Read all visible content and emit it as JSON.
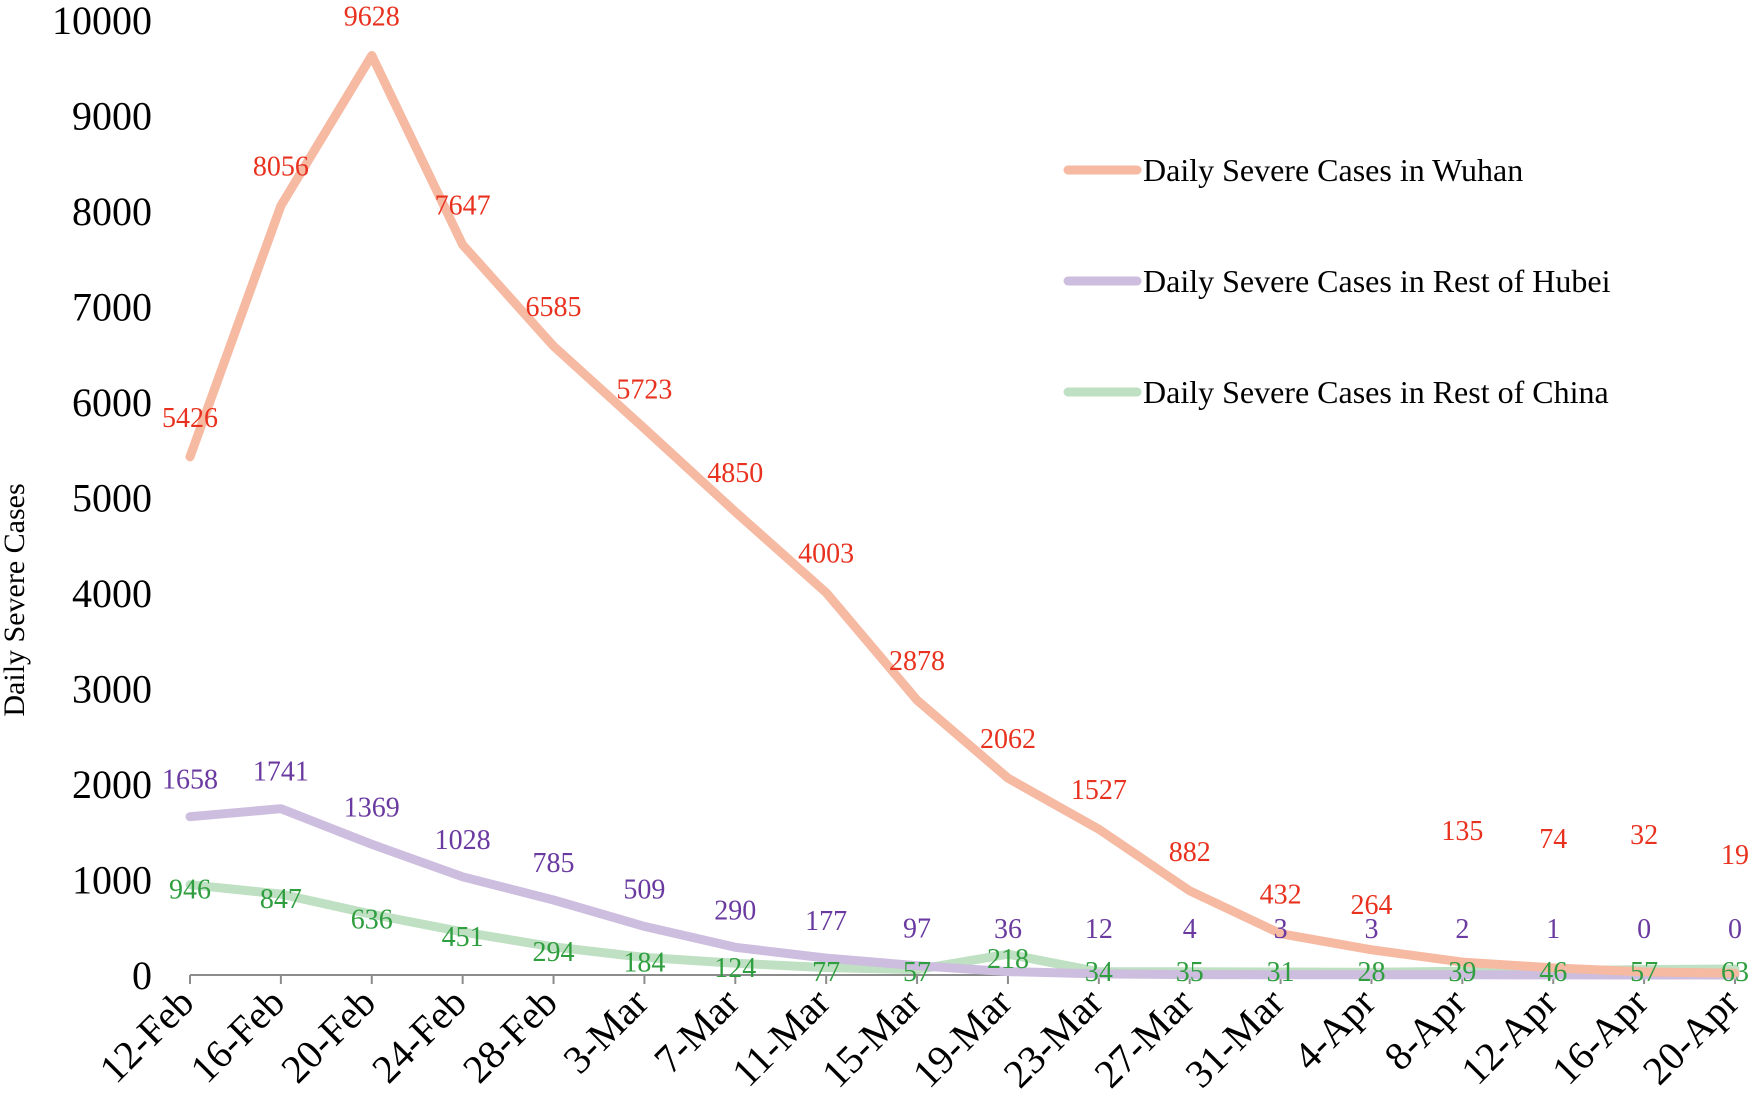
{
  "chart_data": {
    "type": "line",
    "title": "",
    "xlabel": "",
    "ylabel": "Daily Severe Cases",
    "ylim": [
      0,
      10000
    ],
    "yticks": [
      0,
      1000,
      2000,
      3000,
      4000,
      5000,
      6000,
      7000,
      8000,
      9000,
      10000
    ],
    "grid": false,
    "legend_position": "right",
    "categories": [
      "12-Feb",
      "16-Feb",
      "20-Feb",
      "24-Feb",
      "28-Feb",
      "3-Mar",
      "7-Mar",
      "11-Mar",
      "15-Mar",
      "19-Mar",
      "23-Mar",
      "27-Mar",
      "31-Mar",
      "4-Apr",
      "8-Apr",
      "12-Apr",
      "16-Apr",
      "20-Apr"
    ],
    "series": [
      {
        "name": "Daily Severe Cases in Wuhan",
        "line_color": "#f6b9a2",
        "label_color": "#e8321f",
        "values": [
          5426,
          8056,
          9628,
          7647,
          6585,
          5723,
          4850,
          4003,
          2878,
          2062,
          1527,
          882,
          432,
          264,
          135,
          74,
          32,
          19
        ]
      },
      {
        "name": "Daily Severe Cases in Rest of Hubei",
        "line_color": "#cdbddf",
        "label_color": "#6a3aa0",
        "values": [
          1658,
          1741,
          1369,
          1028,
          785,
          509,
          290,
          177,
          97,
          36,
          12,
          4,
          3,
          3,
          2,
          1,
          0,
          0
        ]
      },
      {
        "name": "Daily Severe Cases in Rest of China",
        "line_color": "#bfe0c2",
        "label_color": "#2f9e3f",
        "values": [
          946,
          847,
          636,
          451,
          294,
          184,
          124,
          77,
          57,
          218,
          34,
          35,
          31,
          28,
          39,
          46,
          57,
          63
        ]
      }
    ]
  }
}
